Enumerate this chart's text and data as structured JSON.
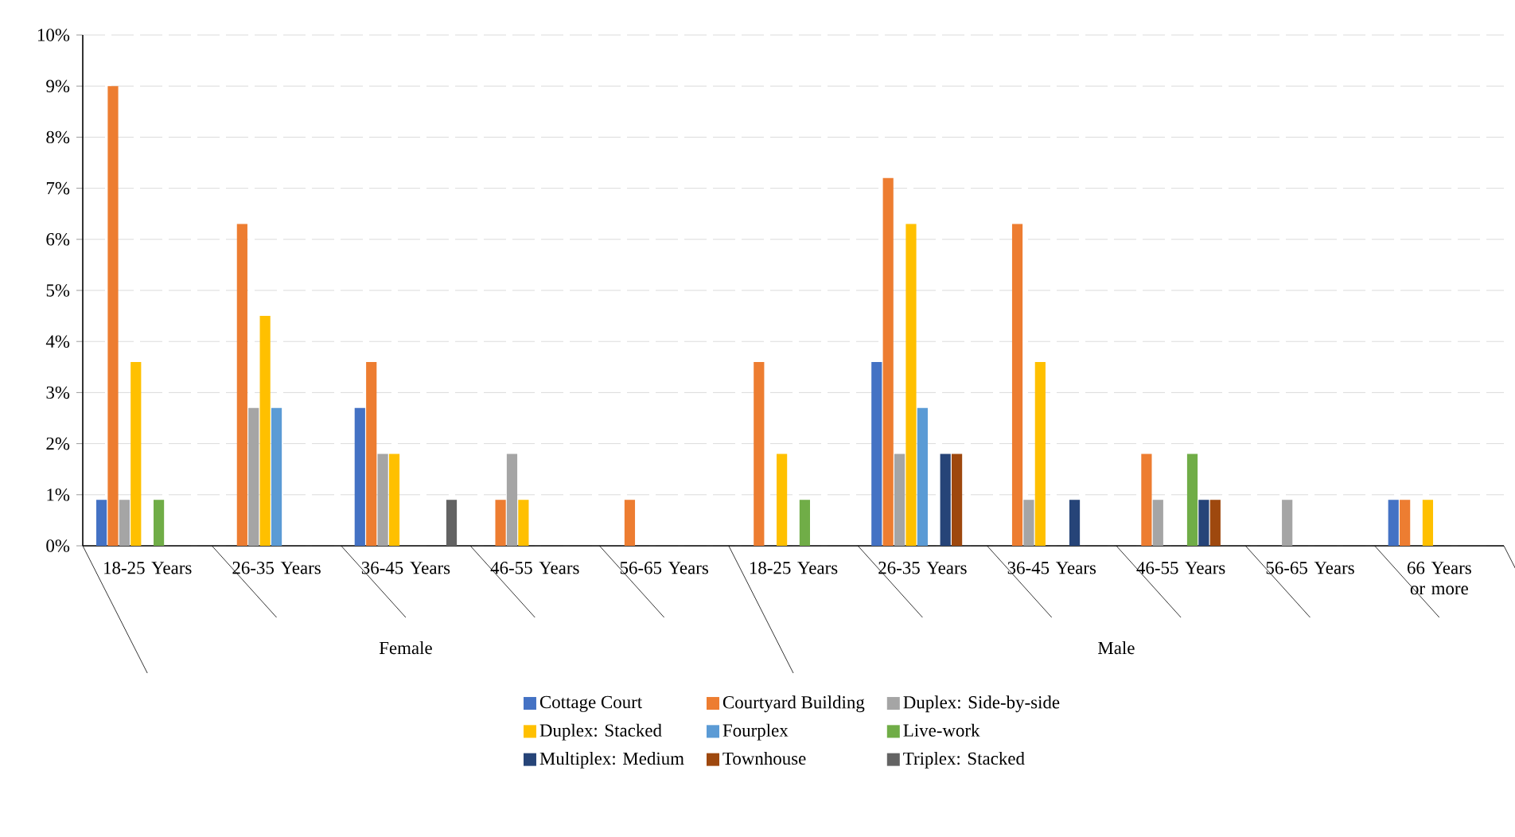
{
  "chart_data": {
    "type": "bar",
    "categories": [
      "18-25 Years",
      "26-35 Years",
      "36-45 Years",
      "46-55 Years",
      "56-65 Years",
      "18-25 Years",
      "26-35 Years",
      "36-45 Years",
      "46-55 Years",
      "56-65 Years",
      "66 Years or more"
    ],
    "annotations": [
      "Female",
      "Male"
    ],
    "series": [
      {
        "name": "Cottage Court",
        "color": "#4472c4",
        "values": [
          0.9,
          null,
          2.7,
          null,
          null,
          null,
          3.6,
          null,
          null,
          null,
          0.9
        ]
      },
      {
        "name": "Courtyard Building",
        "color": "#ed7d31",
        "values": [
          9.0,
          6.3,
          3.6,
          0.9,
          0.9,
          3.6,
          7.2,
          6.3,
          1.8,
          null,
          0.9
        ]
      },
      {
        "name": "Duplex: Side-by-side",
        "color": "#a5a5a5",
        "values": [
          0.9,
          2.7,
          1.8,
          1.8,
          null,
          null,
          1.8,
          0.9,
          0.9,
          0.9,
          null
        ]
      },
      {
        "name": "Duplex: Stacked",
        "color": "#ffc000",
        "values": [
          3.6,
          4.5,
          1.8,
          0.9,
          null,
          1.8,
          6.3,
          3.6,
          null,
          null,
          0.9
        ]
      },
      {
        "name": "Fourplex",
        "color": "#5b9bd5",
        "values": [
          null,
          2.7,
          null,
          null,
          null,
          null,
          2.7,
          null,
          null,
          null,
          null
        ]
      },
      {
        "name": "Live-work",
        "color": "#70ad47",
        "values": [
          0.9,
          null,
          null,
          null,
          null,
          0.9,
          null,
          null,
          1.8,
          null,
          null
        ]
      },
      {
        "name": "Multiplex: Medium",
        "color": "#264478",
        "values": [
          null,
          null,
          null,
          null,
          null,
          null,
          1.8,
          0.9,
          0.9,
          null,
          null
        ]
      },
      {
        "name": "Townhouse",
        "color": "#9e480e",
        "values": [
          null,
          null,
          null,
          null,
          null,
          null,
          1.8,
          null,
          0.9,
          null,
          null
        ]
      },
      {
        "name": "Triplex: Stacked",
        "color": "#636363",
        "values": [
          null,
          null,
          0.9,
          null,
          null,
          null,
          null,
          null,
          null,
          null,
          null
        ]
      }
    ],
    "ylim": [
      0,
      10
    ],
    "yticks": [
      {
        "value": 0,
        "label": "0%"
      },
      {
        "value": 1,
        "label": "1%"
      },
      {
        "value": 2,
        "label": "2%"
      },
      {
        "value": 3,
        "label": "3%"
      },
      {
        "value": 4,
        "label": "4%"
      },
      {
        "value": 5,
        "label": "5%"
      },
      {
        "value": 6,
        "label": "6%"
      },
      {
        "value": 7,
        "label": "7%"
      },
      {
        "value": 8,
        "label": "8%"
      },
      {
        "value": 9,
        "label": "9%"
      },
      {
        "value": 10,
        "label": "10%"
      }
    ],
    "grid": "y",
    "legend": "bottom"
  }
}
